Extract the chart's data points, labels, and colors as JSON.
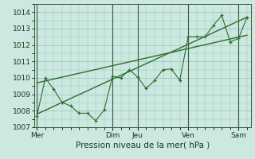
{
  "xlabel": "Pression niveau de la mer( hPa )",
  "background_color": "#cce8e0",
  "grid_color": "#90c4b4",
  "line_color": "#2d6e2d",
  "vline_color": "#3a5a3a",
  "ylim": [
    1007,
    1014.5
  ],
  "yticks": [
    1007,
    1008,
    1009,
    1010,
    1011,
    1012,
    1013,
    1014
  ],
  "day_labels": [
    "Mer",
    "Dim",
    "Jeu",
    "Ven",
    "Sam"
  ],
  "day_positions": [
    0,
    9,
    12,
    18,
    24
  ],
  "vline_positions": [
    0,
    9,
    12,
    18,
    24
  ],
  "line1_x": [
    0,
    1,
    2,
    3,
    4,
    5,
    6,
    7,
    8,
    9,
    10,
    11,
    12,
    13,
    14,
    15,
    16,
    17,
    18,
    19,
    20,
    21,
    22,
    23,
    24,
    25
  ],
  "line1_y": [
    1007.7,
    1010.0,
    1009.3,
    1008.5,
    1008.3,
    1007.85,
    1007.85,
    1007.4,
    1008.05,
    1010.1,
    1010.0,
    1010.5,
    1010.05,
    1009.35,
    1009.85,
    1010.5,
    1010.55,
    1009.85,
    1012.5,
    1012.5,
    1012.5,
    1013.2,
    1013.8,
    1012.2,
    1012.4,
    1013.7
  ],
  "trend1_x": [
    0,
    25
  ],
  "trend1_y": [
    1007.8,
    1013.7
  ],
  "trend2_x": [
    0,
    25
  ],
  "trend2_y": [
    1009.7,
    1012.6
  ],
  "xlim": [
    -0.3,
    25.5
  ],
  "xlabel_fontsize": 7.5,
  "tick_fontsize": 6.5
}
